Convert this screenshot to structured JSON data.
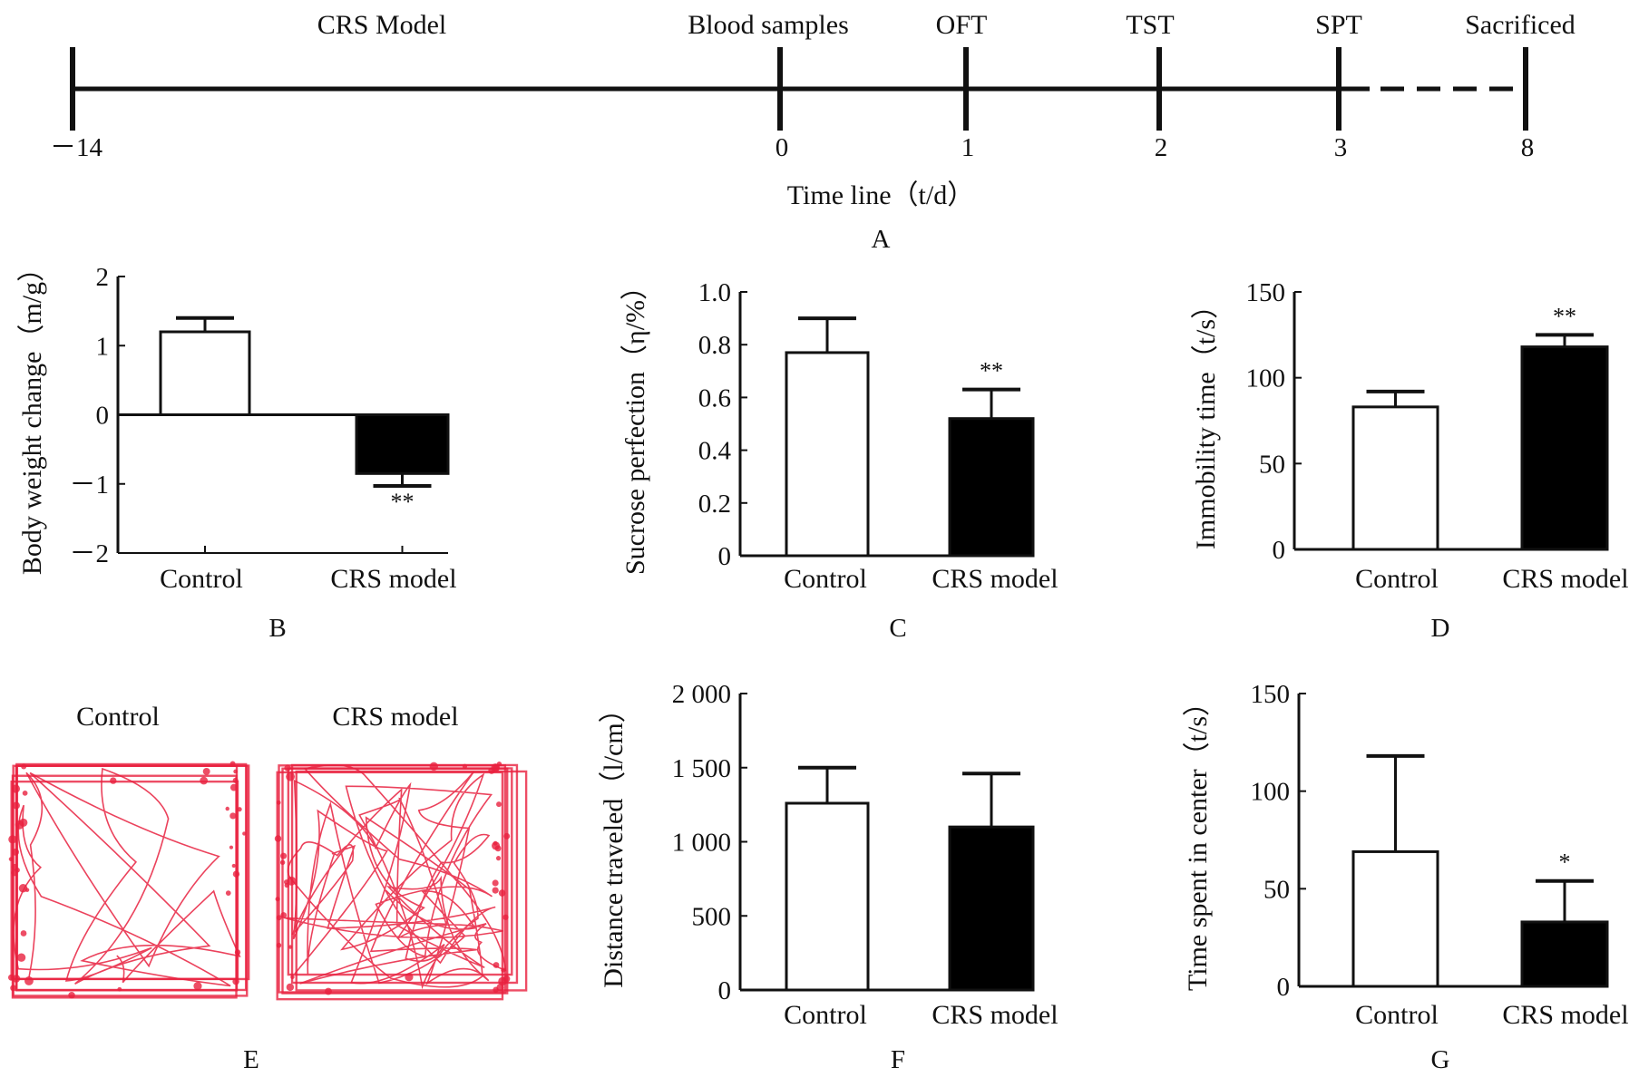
{
  "colors": {
    "ink": "#111111",
    "bar_control": "#ffffff",
    "bar_model": "#000000",
    "trace": "#e8213f"
  },
  "timeline": {
    "events": [
      {
        "day": -14,
        "day_label": "－14",
        "event": "CRS Model"
      },
      {
        "day": 0,
        "day_label": "0",
        "event": "Blood samples"
      },
      {
        "day": 1,
        "day_label": "1",
        "event": "OFT"
      },
      {
        "day": 2,
        "day_label": "2",
        "event": "TST"
      },
      {
        "day": 3,
        "day_label": "3",
        "event": "SPT"
      },
      {
        "day": 8,
        "day_label": "8",
        "event": "Sacrificed"
      }
    ],
    "xlabel": "Time line（t/d）",
    "panel": "A"
  },
  "trace_panel": {
    "panel": "E",
    "labels": [
      "Control",
      "CRS model"
    ]
  },
  "chart_data": [
    {
      "panel": "B",
      "type": "bar",
      "categories": [
        "Control",
        "CRS model"
      ],
      "values": [
        1.2,
        -0.85
      ],
      "errors": [
        0.2,
        0.18
      ],
      "significance": [
        "",
        "**"
      ],
      "ylabel": "Body weight change（m/g）",
      "ylim": [
        -2,
        2
      ],
      "yticks": [
        2,
        1,
        0,
        -1,
        -2
      ],
      "ytick_labels": [
        "2",
        "1",
        "0",
        "－1",
        "－2"
      ]
    },
    {
      "panel": "C",
      "type": "bar",
      "categories": [
        "Control",
        "CRS model"
      ],
      "values": [
        0.77,
        0.52
      ],
      "errors": [
        0.13,
        0.11
      ],
      "significance": [
        "",
        "**"
      ],
      "ylabel": "Sucrose perfection（η/%）",
      "ylim": [
        0,
        1.0
      ],
      "yticks": [
        1.0,
        0.8,
        0.6,
        0.4,
        0.2,
        0
      ],
      "ytick_labels": [
        "1.0",
        "0.8",
        "0.6",
        "0.4",
        "0.2",
        "0"
      ]
    },
    {
      "panel": "D",
      "type": "bar",
      "categories": [
        "Control",
        "CRS model"
      ],
      "values": [
        83,
        118
      ],
      "errors": [
        9,
        7
      ],
      "significance": [
        "",
        "**"
      ],
      "ylabel": "Immobility time（t/s）",
      "ylim": [
        0,
        150
      ],
      "yticks": [
        150,
        100,
        50,
        0
      ],
      "ytick_labels": [
        "150",
        "100",
        "50",
        "0"
      ]
    },
    {
      "panel": "F",
      "type": "bar",
      "categories": [
        "Control",
        "CRS model"
      ],
      "values": [
        1260,
        1100
      ],
      "errors": [
        240,
        360
      ],
      "significance": [
        "",
        ""
      ],
      "ylabel": "Distance traveled（l/cm）",
      "ylim": [
        0,
        2000
      ],
      "yticks": [
        2000,
        1500,
        1000,
        500,
        0
      ],
      "ytick_labels": [
        "2 000",
        "1 500",
        "1 000",
        "500",
        "0"
      ]
    },
    {
      "panel": "G",
      "type": "bar",
      "categories": [
        "Control",
        "CRS model"
      ],
      "values": [
        69,
        33
      ],
      "errors": [
        49,
        21
      ],
      "significance": [
        "",
        "*"
      ],
      "ylabel": "Time spent in center（t/s）",
      "ylim": [
        0,
        150
      ],
      "yticks": [
        150,
        100,
        50,
        0
      ],
      "ytick_labels": [
        "150",
        "100",
        "50",
        "0"
      ]
    }
  ]
}
